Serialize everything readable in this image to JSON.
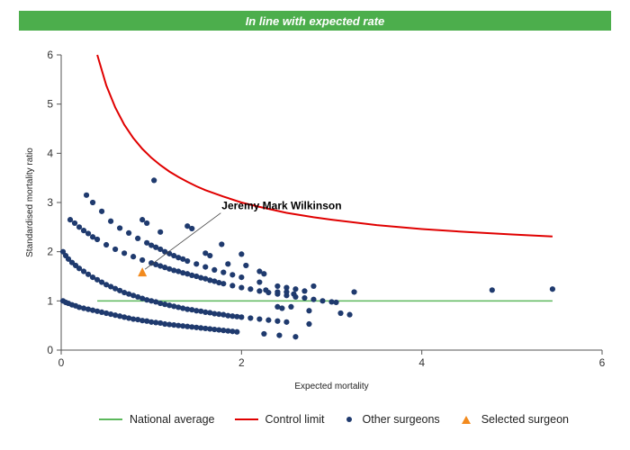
{
  "banner": {
    "text": "In line with expected rate",
    "color": "#4cae4c"
  },
  "chart_data": {
    "type": "scatter",
    "xlabel": "Expected mortality",
    "ylabel": "Standardised mortality ratio",
    "xlim": [
      0,
      6
    ],
    "ylim": [
      0,
      6
    ],
    "x_ticks": [
      0,
      2,
      4,
      6
    ],
    "y_ticks": [
      0,
      1,
      2,
      3,
      4,
      5,
      6
    ],
    "grid": false,
    "legend_position": "bottom",
    "annotation": {
      "text": "Jeremy Mark Wilkinson",
      "x": 1.78,
      "y": 2.86
    },
    "national_average": {
      "name": "National average",
      "color": "#5cb85c",
      "y": 1,
      "x_range": [
        0.4,
        5.45
      ]
    },
    "control_limit": {
      "name": "Control limit",
      "color": "#e00000",
      "x": [
        0.4,
        0.5,
        0.6,
        0.7,
        0.8,
        0.9,
        1.0,
        1.1,
        1.2,
        1.3,
        1.4,
        1.5,
        1.6,
        1.8,
        2.0,
        2.2,
        2.5,
        2.8,
        3.0,
        3.5,
        4.0,
        4.5,
        5.0,
        5.45
      ],
      "y": [
        6.0,
        5.38,
        4.93,
        4.58,
        4.31,
        4.09,
        3.91,
        3.76,
        3.63,
        3.52,
        3.42,
        3.33,
        3.25,
        3.12,
        3.0,
        2.91,
        2.79,
        2.7,
        2.65,
        2.54,
        2.46,
        2.4,
        2.35,
        2.31
      ]
    },
    "series": [
      {
        "name": "Other surgeons",
        "color": "#1f3a6e",
        "points": [
          [
            0.02,
            1.0
          ],
          [
            0.05,
            0.97
          ],
          [
            0.08,
            0.95
          ],
          [
            0.12,
            0.92
          ],
          [
            0.16,
            0.9
          ],
          [
            0.2,
            0.87
          ],
          [
            0.25,
            0.85
          ],
          [
            0.3,
            0.83
          ],
          [
            0.35,
            0.81
          ],
          [
            0.4,
            0.79
          ],
          [
            0.45,
            0.77
          ],
          [
            0.5,
            0.75
          ],
          [
            0.55,
            0.73
          ],
          [
            0.6,
            0.71
          ],
          [
            0.65,
            0.69
          ],
          [
            0.7,
            0.67
          ],
          [
            0.75,
            0.65
          ],
          [
            0.8,
            0.63
          ],
          [
            0.85,
            0.62
          ],
          [
            0.9,
            0.6
          ],
          [
            0.95,
            0.59
          ],
          [
            1.0,
            0.57
          ],
          [
            1.05,
            0.56
          ],
          [
            1.1,
            0.55
          ],
          [
            1.15,
            0.53
          ],
          [
            1.2,
            0.52
          ],
          [
            1.25,
            0.51
          ],
          [
            1.3,
            0.5
          ],
          [
            1.35,
            0.49
          ],
          [
            1.4,
            0.48
          ],
          [
            1.45,
            0.47
          ],
          [
            1.5,
            0.46
          ],
          [
            1.55,
            0.45
          ],
          [
            1.6,
            0.44
          ],
          [
            1.65,
            0.43
          ],
          [
            1.7,
            0.42
          ],
          [
            1.75,
            0.41
          ],
          [
            1.8,
            0.4
          ],
          [
            1.85,
            0.39
          ],
          [
            1.9,
            0.38
          ],
          [
            1.95,
            0.37
          ],
          [
            2.25,
            0.33
          ],
          [
            2.42,
            0.3
          ],
          [
            2.6,
            0.27
          ],
          [
            0.02,
            2.0
          ],
          [
            0.05,
            1.92
          ],
          [
            0.08,
            1.85
          ],
          [
            0.12,
            1.78
          ],
          [
            0.16,
            1.72
          ],
          [
            0.2,
            1.66
          ],
          [
            0.25,
            1.6
          ],
          [
            0.3,
            1.54
          ],
          [
            0.35,
            1.48
          ],
          [
            0.4,
            1.43
          ],
          [
            0.45,
            1.38
          ],
          [
            0.5,
            1.33
          ],
          [
            0.55,
            1.29
          ],
          [
            0.6,
            1.25
          ],
          [
            0.65,
            1.21
          ],
          [
            0.7,
            1.17
          ],
          [
            0.75,
            1.14
          ],
          [
            0.8,
            1.11
          ],
          [
            0.85,
            1.08
          ],
          [
            0.9,
            1.05
          ],
          [
            0.95,
            1.02
          ],
          [
            1.0,
            1.0
          ],
          [
            1.05,
            0.98
          ],
          [
            1.1,
            0.95
          ],
          [
            1.15,
            0.93
          ],
          [
            1.2,
            0.91
          ],
          [
            1.25,
            0.89
          ],
          [
            1.3,
            0.87
          ],
          [
            1.35,
            0.85
          ],
          [
            1.4,
            0.83
          ],
          [
            1.45,
            0.82
          ],
          [
            1.5,
            0.8
          ],
          [
            1.55,
            0.79
          ],
          [
            1.6,
            0.77
          ],
          [
            1.65,
            0.76
          ],
          [
            1.7,
            0.74
          ],
          [
            1.75,
            0.73
          ],
          [
            1.8,
            0.72
          ],
          [
            1.85,
            0.7
          ],
          [
            1.9,
            0.69
          ],
          [
            1.95,
            0.68
          ],
          [
            2.0,
            0.67
          ],
          [
            2.1,
            0.65
          ],
          [
            2.2,
            0.63
          ],
          [
            2.3,
            0.61
          ],
          [
            2.4,
            0.59
          ],
          [
            2.5,
            0.57
          ],
          [
            2.75,
            0.53
          ],
          [
            0.1,
            2.65
          ],
          [
            0.15,
            2.58
          ],
          [
            0.2,
            2.5
          ],
          [
            0.25,
            2.43
          ],
          [
            0.3,
            2.37
          ],
          [
            0.35,
            2.3
          ],
          [
            0.4,
            2.25
          ],
          [
            0.5,
            2.14
          ],
          [
            0.6,
            2.05
          ],
          [
            0.7,
            1.97
          ],
          [
            0.8,
            1.9
          ],
          [
            0.9,
            1.83
          ],
          [
            1.0,
            1.77
          ],
          [
            1.05,
            1.74
          ],
          [
            1.1,
            1.71
          ],
          [
            1.15,
            1.68
          ],
          [
            1.2,
            1.65
          ],
          [
            1.25,
            1.62
          ],
          [
            1.3,
            1.6
          ],
          [
            1.35,
            1.57
          ],
          [
            1.4,
            1.55
          ],
          [
            1.45,
            1.52
          ],
          [
            1.5,
            1.5
          ],
          [
            1.55,
            1.47
          ],
          [
            1.6,
            1.45
          ],
          [
            1.65,
            1.42
          ],
          [
            1.7,
            1.4
          ],
          [
            1.75,
            1.37
          ],
          [
            1.8,
            1.35
          ],
          [
            1.9,
            1.31
          ],
          [
            2.0,
            1.27
          ],
          [
            2.1,
            1.24
          ],
          [
            2.2,
            1.2
          ],
          [
            2.3,
            1.17
          ],
          [
            2.4,
            1.14
          ],
          [
            2.5,
            1.11
          ],
          [
            2.6,
            1.08
          ],
          [
            2.7,
            1.06
          ],
          [
            2.8,
            1.03
          ],
          [
            2.9,
            1.0
          ],
          [
            3.0,
            0.98
          ],
          [
            3.05,
            0.97
          ],
          [
            3.1,
            0.75
          ],
          [
            3.2,
            0.72
          ],
          [
            0.28,
            3.15
          ],
          [
            0.35,
            3.0
          ],
          [
            0.45,
            2.82
          ],
          [
            0.55,
            2.62
          ],
          [
            0.65,
            2.48
          ],
          [
            0.75,
            2.38
          ],
          [
            0.85,
            2.27
          ],
          [
            0.95,
            2.18
          ],
          [
            1.0,
            2.13
          ],
          [
            1.05,
            2.09
          ],
          [
            1.1,
            2.05
          ],
          [
            1.15,
            2.0
          ],
          [
            1.2,
            1.96
          ],
          [
            1.25,
            1.92
          ],
          [
            1.3,
            1.88
          ],
          [
            1.35,
            1.85
          ],
          [
            1.4,
            1.81
          ],
          [
            1.5,
            1.75
          ],
          [
            1.6,
            1.69
          ],
          [
            1.7,
            1.63
          ],
          [
            1.8,
            1.58
          ],
          [
            1.9,
            1.53
          ],
          [
            2.0,
            1.48
          ],
          [
            2.2,
            1.38
          ],
          [
            2.4,
            1.3
          ],
          [
            2.5,
            1.27
          ],
          [
            2.6,
            1.24
          ],
          [
            2.7,
            1.2
          ],
          [
            2.75,
            0.8
          ],
          [
            2.8,
            1.3
          ],
          [
            0.9,
            2.65
          ],
          [
            0.95,
            2.58
          ],
          [
            1.03,
            3.45
          ],
          [
            1.1,
            2.4
          ],
          [
            1.4,
            2.52
          ],
          [
            1.45,
            2.47
          ],
          [
            1.6,
            1.97
          ],
          [
            1.65,
            1.92
          ],
          [
            1.78,
            2.15
          ],
          [
            1.85,
            1.75
          ],
          [
            2.0,
            1.95
          ],
          [
            2.05,
            1.72
          ],
          [
            2.2,
            1.6
          ],
          [
            2.25,
            1.55
          ],
          [
            2.27,
            1.22
          ],
          [
            2.4,
            1.18
          ],
          [
            2.5,
            1.18
          ],
          [
            2.58,
            1.14
          ],
          [
            2.4,
            0.88
          ],
          [
            2.45,
            0.85
          ],
          [
            2.55,
            0.88
          ],
          [
            3.25,
            1.18
          ],
          [
            4.78,
            1.22
          ],
          [
            5.45,
            1.24
          ]
        ]
      },
      {
        "name": "Selected surgeon",
        "color": "#f28a1e",
        "points": [
          [
            0.9,
            1.57
          ]
        ]
      }
    ]
  }
}
